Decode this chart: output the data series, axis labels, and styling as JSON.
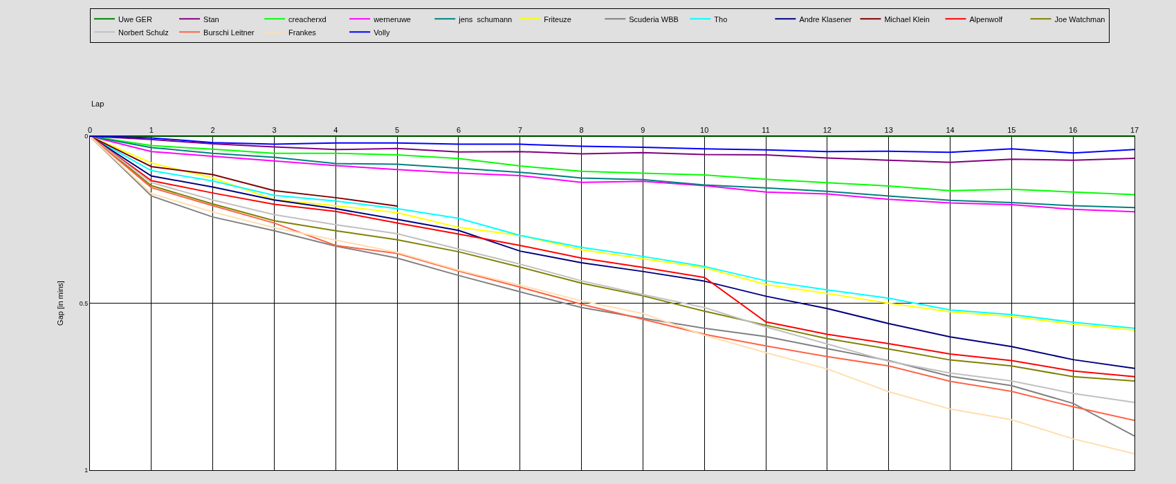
{
  "chart_data": {
    "type": "line",
    "xlabel": "Lap",
    "ylabel": "Gap [in mins]",
    "x": [
      0,
      1,
      2,
      3,
      4,
      5,
      6,
      7,
      8,
      9,
      10,
      11,
      12,
      13,
      14,
      15,
      16,
      17
    ],
    "xlim": [
      0,
      17
    ],
    "xticks": [
      0,
      1,
      2,
      3,
      4,
      5,
      6,
      7,
      8,
      9,
      10,
      11,
      12,
      13,
      14,
      15,
      16,
      17
    ],
    "ylim": [
      1,
      0
    ],
    "yticks": [
      0,
      0.5,
      1
    ],
    "grid": true,
    "legend": "top",
    "marker": "none",
    "line_style": "solid",
    "series": [
      {
        "name": "Uwe GER",
        "color": "#008000",
        "values": [
          0,
          0,
          0,
          0,
          0,
          0,
          0,
          0,
          0,
          0,
          0,
          0,
          0,
          0,
          0,
          0,
          0,
          0
        ]
      },
      {
        "name": "Stan",
        "color": "#800080",
        "values": [
          0,
          0.01,
          0.023,
          0.032,
          0.04,
          0.037,
          0.047,
          0.046,
          0.053,
          0.049,
          0.055,
          0.056,
          0.065,
          0.072,
          0.078,
          0.069,
          0.072,
          0.066
        ]
      },
      {
        "name": "creacherxd",
        "color": "#00ff00",
        "values": [
          0,
          0.028,
          0.039,
          0.051,
          0.051,
          0.056,
          0.067,
          0.089,
          0.105,
          0.111,
          0.116,
          0.129,
          0.139,
          0.149,
          0.163,
          0.159,
          0.167,
          0.175
        ]
      },
      {
        "name": "werneruwe",
        "color": "#ff00ff",
        "values": [
          0,
          0.046,
          0.06,
          0.074,
          0.088,
          0.1,
          0.11,
          0.118,
          0.138,
          0.135,
          0.148,
          0.167,
          0.173,
          0.189,
          0.2,
          0.205,
          0.219,
          0.226
        ]
      },
      {
        "name": "jens  schumann",
        "color": "#008080",
        "values": [
          0,
          0.034,
          0.051,
          0.063,
          0.082,
          0.084,
          0.096,
          0.108,
          0.125,
          0.13,
          0.146,
          0.155,
          0.165,
          0.179,
          0.192,
          0.199,
          0.208,
          0.214
        ]
      },
      {
        "name": "Friteuze",
        "color": "#ffff00",
        "values": [
          0,
          0.08,
          0.125,
          0.19,
          0.208,
          0.229,
          0.273,
          0.297,
          0.34,
          0.367,
          0.394,
          0.444,
          0.471,
          0.5,
          0.526,
          0.54,
          0.563,
          0.581
        ]
      },
      {
        "name": "Scuderia WBB",
        "color": "#808080",
        "values": [
          0,
          0.179,
          0.242,
          0.283,
          0.329,
          0.365,
          0.417,
          0.466,
          0.513,
          0.545,
          0.575,
          0.6,
          0.636,
          0.672,
          0.719,
          0.747,
          0.8,
          0.898
        ]
      },
      {
        "name": "Tho",
        "color": "#00ffff",
        "values": [
          0,
          0.103,
          0.134,
          0.177,
          0.194,
          0.217,
          0.246,
          0.297,
          0.333,
          0.36,
          0.39,
          0.433,
          0.46,
          0.485,
          0.52,
          0.534,
          0.557,
          0.575
        ]
      },
      {
        "name": "Andre Klasener",
        "color": "#000080",
        "values": [
          0,
          0.119,
          0.152,
          0.191,
          0.217,
          0.249,
          0.282,
          0.344,
          0.379,
          0.405,
          0.434,
          0.479,
          0.516,
          0.561,
          0.601,
          0.63,
          0.669,
          0.695
        ]
      },
      {
        "name": "Michael Klein",
        "color": "#800000",
        "values": [
          0,
          0.091,
          0.115,
          0.163,
          0.184,
          0.209,
          null,
          null,
          null,
          null,
          null,
          null,
          null,
          null,
          null,
          null,
          null,
          null
        ]
      },
      {
        "name": "Alpenwolf",
        "color": "#ff0000",
        "values": [
          0,
          0.133,
          0.17,
          0.204,
          0.225,
          0.26,
          0.293,
          0.327,
          0.365,
          0.393,
          0.423,
          0.556,
          0.593,
          0.621,
          0.652,
          0.672,
          0.703,
          0.72
        ]
      },
      {
        "name": "Joe Watchman",
        "color": "#808000",
        "values": [
          0,
          0.148,
          0.203,
          0.253,
          0.283,
          0.31,
          0.346,
          0.392,
          0.44,
          0.478,
          0.524,
          0.566,
          0.606,
          0.637,
          0.67,
          0.688,
          0.72,
          0.733
        ]
      },
      {
        "name": "Norbert Schulz",
        "color": "#c0c0c0",
        "values": [
          0,
          0.139,
          0.191,
          0.235,
          0.265,
          0.292,
          0.338,
          0.383,
          0.433,
          0.474,
          0.513,
          0.571,
          0.622,
          0.674,
          0.709,
          0.733,
          0.77,
          0.797
        ]
      },
      {
        "name": "Burschi Leitner",
        "color": "#ff6347",
        "values": [
          0,
          0.154,
          0.208,
          0.26,
          0.327,
          0.351,
          0.404,
          0.452,
          0.503,
          0.548,
          0.593,
          0.628,
          0.66,
          0.688,
          0.734,
          0.764,
          0.81,
          0.851
        ]
      },
      {
        "name": "Frankes",
        "color": "#ffdead",
        "values": [
          0,
          0.172,
          0.227,
          0.274,
          0.311,
          0.348,
          0.401,
          0.446,
          0.493,
          0.531,
          0.596,
          0.648,
          0.697,
          0.765,
          0.817,
          0.849,
          0.906,
          0.951
        ]
      },
      {
        "name": "Volly",
        "color": "#0000ff",
        "values": [
          0,
          0.005,
          0.019,
          0.024,
          0.02,
          0.02,
          0.024,
          0.024,
          0.03,
          0.033,
          0.038,
          0.041,
          0.046,
          0.045,
          0.048,
          0.038,
          0.05,
          0.04
        ]
      }
    ]
  }
}
